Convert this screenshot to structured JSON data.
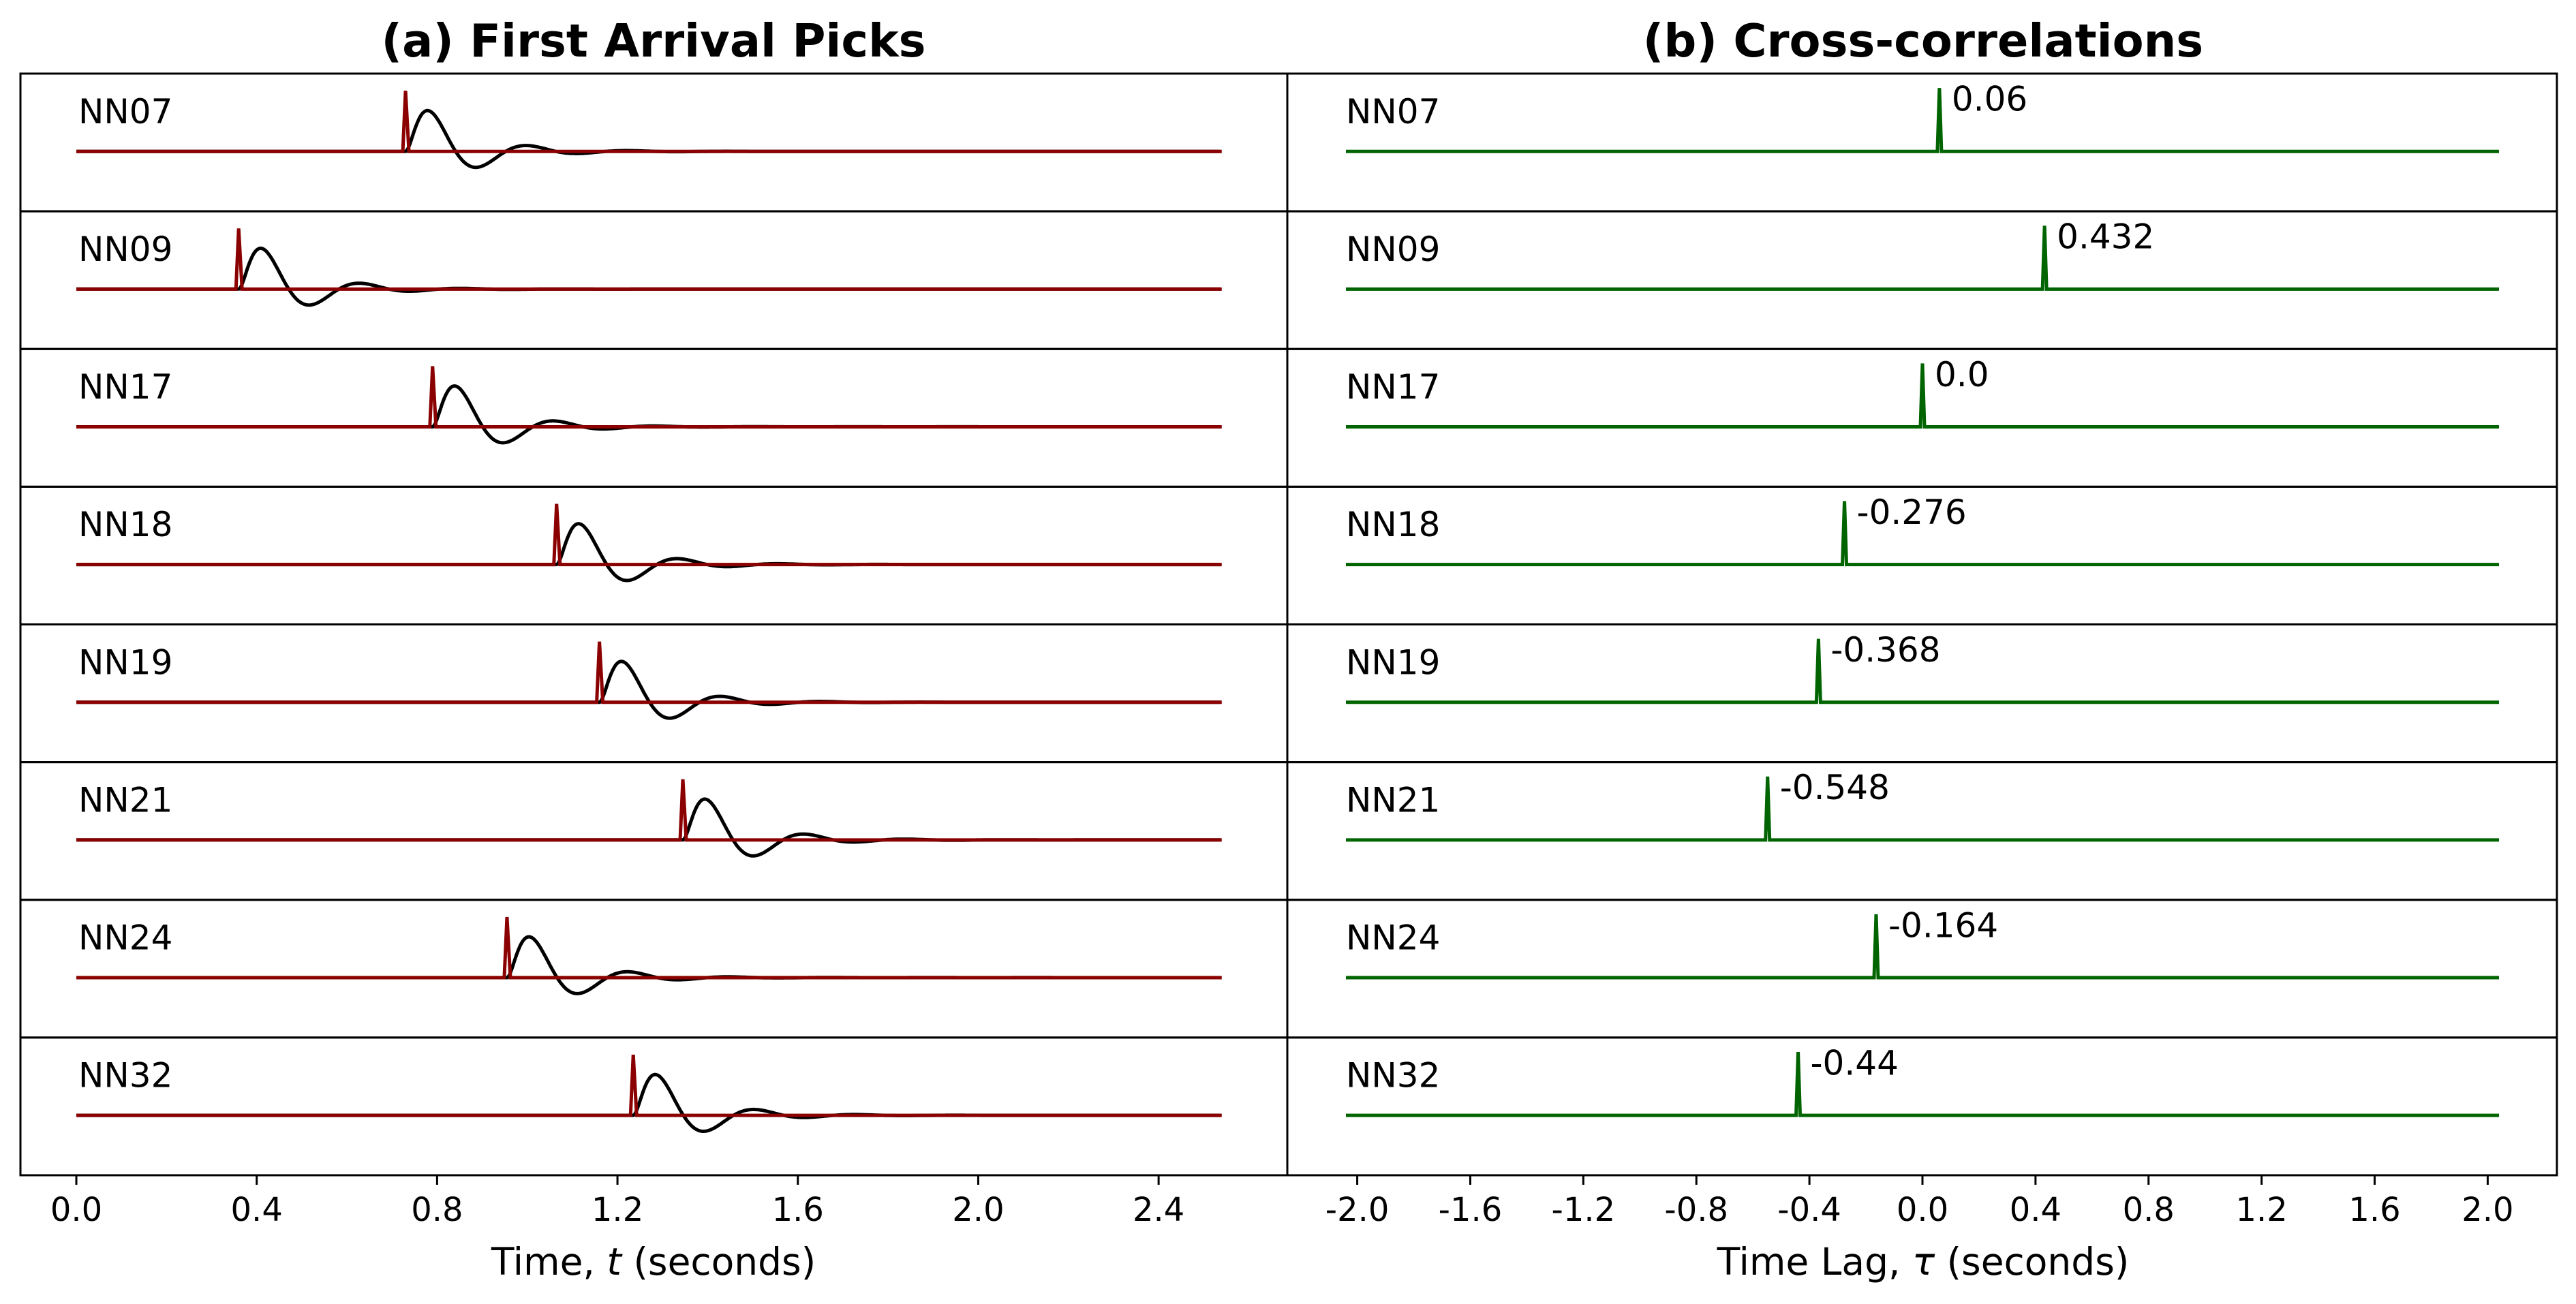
{
  "chart_data": [
    {
      "type": "line",
      "title": "(a) First Arrival Picks",
      "xlabel_prefix": "Time, ",
      "xlabel_var": "t",
      "xlabel_suffix": " (seconds)",
      "xlim": [
        0.0,
        2.56
      ],
      "xticks": [
        "0.0",
        "0.4",
        "0.8",
        "1.2",
        "1.6",
        "2.0",
        "2.4"
      ],
      "series": [
        {
          "name": "NN07",
          "pick": 0.73
        },
        {
          "name": "NN09",
          "pick": 0.36
        },
        {
          "name": "NN17",
          "pick": 0.79
        },
        {
          "name": "NN18",
          "pick": 1.065
        },
        {
          "name": "NN19",
          "pick": 1.16
        },
        {
          "name": "NN21",
          "pick": 1.345
        },
        {
          "name": "NN24",
          "pick": 0.955
        },
        {
          "name": "NN32",
          "pick": 1.235
        }
      ],
      "colors": {
        "waveform": "#000000",
        "pick": "#8b0000"
      }
    },
    {
      "type": "line",
      "title": "(b) Cross-correlations",
      "xlabel_prefix": "Time Lag, ",
      "xlabel_var": "τ",
      "xlabel_suffix": " (seconds)",
      "xlim": [
        -2.04,
        2.04
      ],
      "xticks": [
        "-2.0",
        "-1.6",
        "-1.2",
        "-0.8",
        "-0.4",
        "0.0",
        "0.4",
        "0.8",
        "1.2",
        "1.6",
        "2.0"
      ],
      "series": [
        {
          "name": "NN07",
          "lag": 0.06,
          "label": "0.06"
        },
        {
          "name": "NN09",
          "lag": 0.432,
          "label": "0.432"
        },
        {
          "name": "NN17",
          "lag": 0.0,
          "label": "0.0"
        },
        {
          "name": "NN18",
          "lag": -0.276,
          "label": "-0.276"
        },
        {
          "name": "NN19",
          "lag": -0.368,
          "label": "-0.368"
        },
        {
          "name": "NN21",
          "lag": -0.548,
          "label": "-0.548"
        },
        {
          "name": "NN24",
          "lag": -0.164,
          "label": "-0.164"
        },
        {
          "name": "NN32",
          "lag": -0.44,
          "label": "-0.44"
        }
      ],
      "colors": {
        "xcorr": "#006400"
      }
    }
  ]
}
